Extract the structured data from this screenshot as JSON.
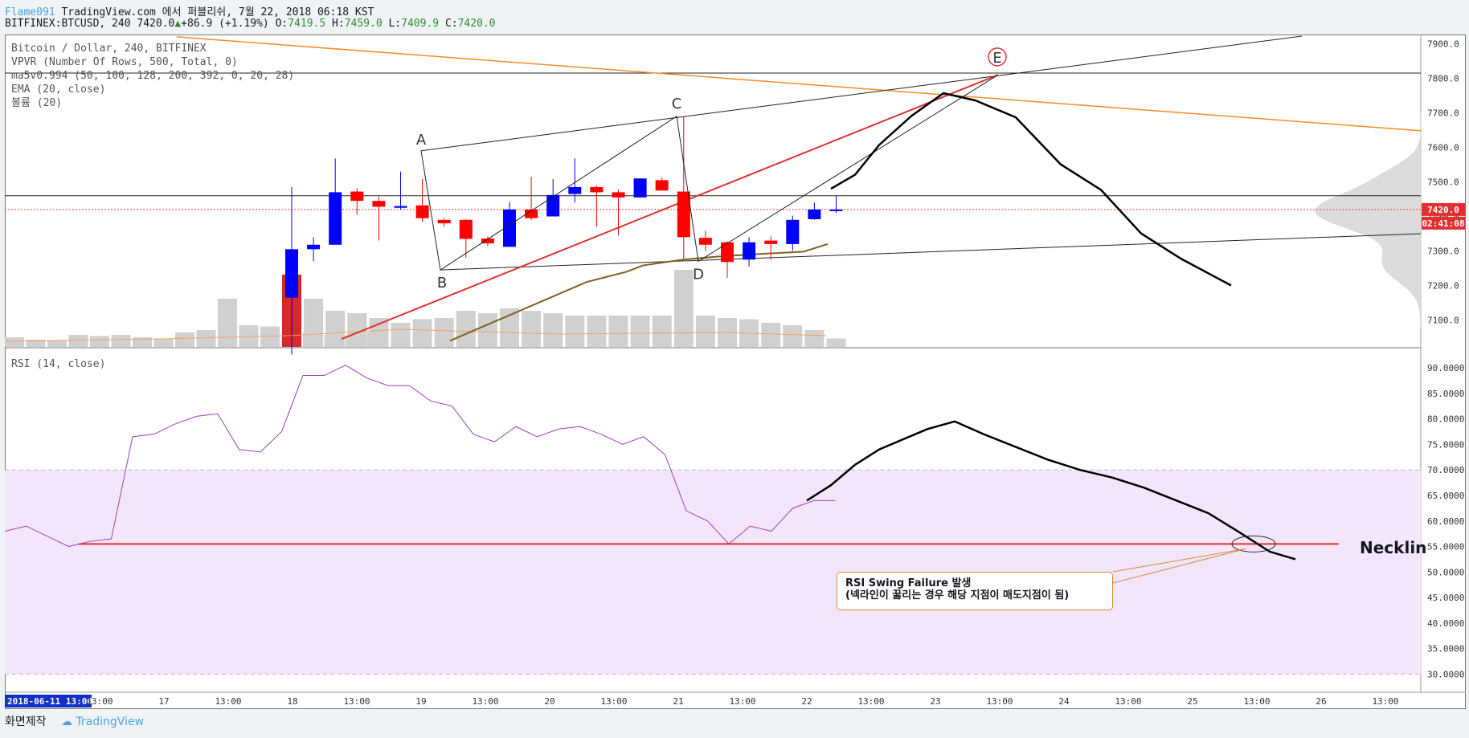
{
  "header": {
    "author": "Flame091",
    "publish_text": "TradingView.com 에서 퍼블리쉬, 7월 22, 2018 06:18 KST",
    "symbol": "BITFINEX:BTCUSD, 240",
    "last": "7420.0",
    "change": "+86.9 (+1.19%)",
    "o_label": "O:",
    "o_val": "7419.5",
    "h_label": "H:",
    "h_val": "7459.0",
    "l_label": "L:",
    "l_val": "7409.9",
    "c_label": "C:",
    "c_val": "7420.0"
  },
  "legend": {
    "title": "Bitcoin / Dollar, 240, BITFINEX",
    "vpvr": "VPVR (Number Of Rows, 500, Total, 0)",
    "ma": "ma5v0.994 (50, 100, 128, 200, 392, 0, 20, 28)",
    "ema": "EMA (20, close)",
    "volume": "볼륨 (20)",
    "rsi": "RSI (14, close)"
  },
  "price_labels": {
    "last": "7420.0",
    "countdown": "02:41:08"
  },
  "annotation": {
    "line1": "RSI Swing Failure 발생",
    "line2": "(넥라인이 꿇리는 경우 해당 지점이 매도지점이 됨)"
  },
  "neckline_label": "Necklin",
  "footer": {
    "caption": "화면제작",
    "brand": "TradingView"
  },
  "colors": {
    "up": "#ff0000",
    "down": "#0000ff",
    "rsi": "#9b3fb5",
    "ema": "#806020",
    "neck": "#e23030",
    "trend": "#f28c28"
  },
  "chart_data": [
    {
      "type": "candlestick",
      "title": "Bitcoin / Dollar, 240, BITFINEX",
      "ylim": [
        7050,
        7920
      ],
      "y_ticks": [
        7100,
        7200,
        7300,
        7400,
        7500,
        7600,
        7700,
        7800,
        7900
      ],
      "x_ticks": [
        "2018-06-11 13:00:00",
        "13:00",
        "17",
        "13:00",
        "18",
        "13:00",
        "19",
        "13:00",
        "20",
        "13:00",
        "21",
        "13:00",
        "22",
        "13:00",
        "23",
        "13:00",
        "24",
        "13:00",
        "25",
        "13:00",
        "26",
        "13:00"
      ],
      "candles": [
        {
          "o": 7165,
          "h": 7485,
          "l": 7000,
          "c": 7305
        },
        {
          "o": 7305,
          "h": 7340,
          "l": 7270,
          "c": 7318
        },
        {
          "o": 7318,
          "h": 7568,
          "l": 7318,
          "c": 7470
        },
        {
          "o": 7472,
          "h": 7482,
          "l": 7405,
          "c": 7445
        },
        {
          "o": 7445,
          "h": 7458,
          "l": 7330,
          "c": 7428
        },
        {
          "o": 7425,
          "h": 7530,
          "l": 7420,
          "c": 7430
        },
        {
          "o": 7432,
          "h": 7508,
          "l": 7385,
          "c": 7395
        },
        {
          "o": 7390,
          "h": 7395,
          "l": 7370,
          "c": 7380
        },
        {
          "o": 7390,
          "h": 7392,
          "l": 7280,
          "c": 7335
        },
        {
          "o": 7336,
          "h": 7342,
          "l": 7315,
          "c": 7322
        },
        {
          "o": 7312,
          "h": 7442,
          "l": 7312,
          "c": 7420
        },
        {
          "o": 7420,
          "h": 7515,
          "l": 7390,
          "c": 7395
        },
        {
          "o": 7400,
          "h": 7508,
          "l": 7400,
          "c": 7462
        },
        {
          "o": 7465,
          "h": 7568,
          "l": 7440,
          "c": 7485
        },
        {
          "o": 7485,
          "h": 7490,
          "l": 7370,
          "c": 7470
        },
        {
          "o": 7470,
          "h": 7478,
          "l": 7345,
          "c": 7455
        },
        {
          "o": 7455,
          "h": 7510,
          "l": 7455,
          "c": 7510
        },
        {
          "o": 7505,
          "h": 7512,
          "l": 7475,
          "c": 7475
        },
        {
          "o": 7472,
          "h": 7690,
          "l": 7278,
          "c": 7340
        },
        {
          "o": 7338,
          "h": 7358,
          "l": 7300,
          "c": 7318
        },
        {
          "o": 7325,
          "h": 7328,
          "l": 7222,
          "c": 7268
        },
        {
          "o": 7275,
          "h": 7340,
          "l": 7255,
          "c": 7325
        },
        {
          "o": 7330,
          "h": 7342,
          "l": 7275,
          "c": 7320
        },
        {
          "o": 7320,
          "h": 7402,
          "l": 7300,
          "c": 7390
        },
        {
          "o": 7392,
          "h": 7440,
          "l": 7390,
          "c": 7420
        },
        {
          "o": 7419.5,
          "h": 7459,
          "l": 7409.9,
          "c": 7420
        }
      ],
      "volume": [
        60,
        40,
        30,
        28,
        24,
        20,
        23,
        24,
        30,
        28,
        32,
        30,
        28,
        26,
        26,
        26,
        26,
        26,
        64,
        26,
        24,
        23,
        20,
        18,
        14,
        7
      ],
      "pattern_points": {
        "A": 7590,
        "B": 7245,
        "C": 7690,
        "D": 7270,
        "E": 7810
      },
      "projection": [
        7480,
        7530,
        7600,
        7700,
        7750,
        7745,
        7680,
        7560,
        7470,
        7360,
        7270,
        7200
      ]
    },
    {
      "type": "line",
      "title": "RSI (14, close)",
      "ylim": [
        28,
        93
      ],
      "y_ticks": [
        30,
        35,
        40,
        45,
        50,
        55,
        60,
        65,
        70,
        75,
        80,
        85,
        90
      ],
      "band": [
        30,
        70
      ],
      "series": [
        {
          "values": [
            58,
            59,
            57,
            55,
            56,
            56.5,
            76.5,
            77,
            79,
            80.5,
            81,
            74,
            73.5,
            77.5,
            88.5,
            88.5,
            90.5,
            88,
            86.5,
            86.5,
            83.5,
            82.5,
            77,
            75.5,
            78.5,
            76.5,
            78,
            78.5,
            77,
            75,
            76.5,
            73,
            62,
            60,
            55.5,
            59,
            58,
            62.5,
            64,
            64
          ]
        }
      ],
      "projection": [
        64,
        67,
        71,
        74,
        76,
        78,
        79.5,
        77,
        74.5,
        72,
        70,
        68.5,
        66.5,
        64,
        61.5,
        58,
        54,
        52.5
      ],
      "neckline": 55.5
    }
  ]
}
